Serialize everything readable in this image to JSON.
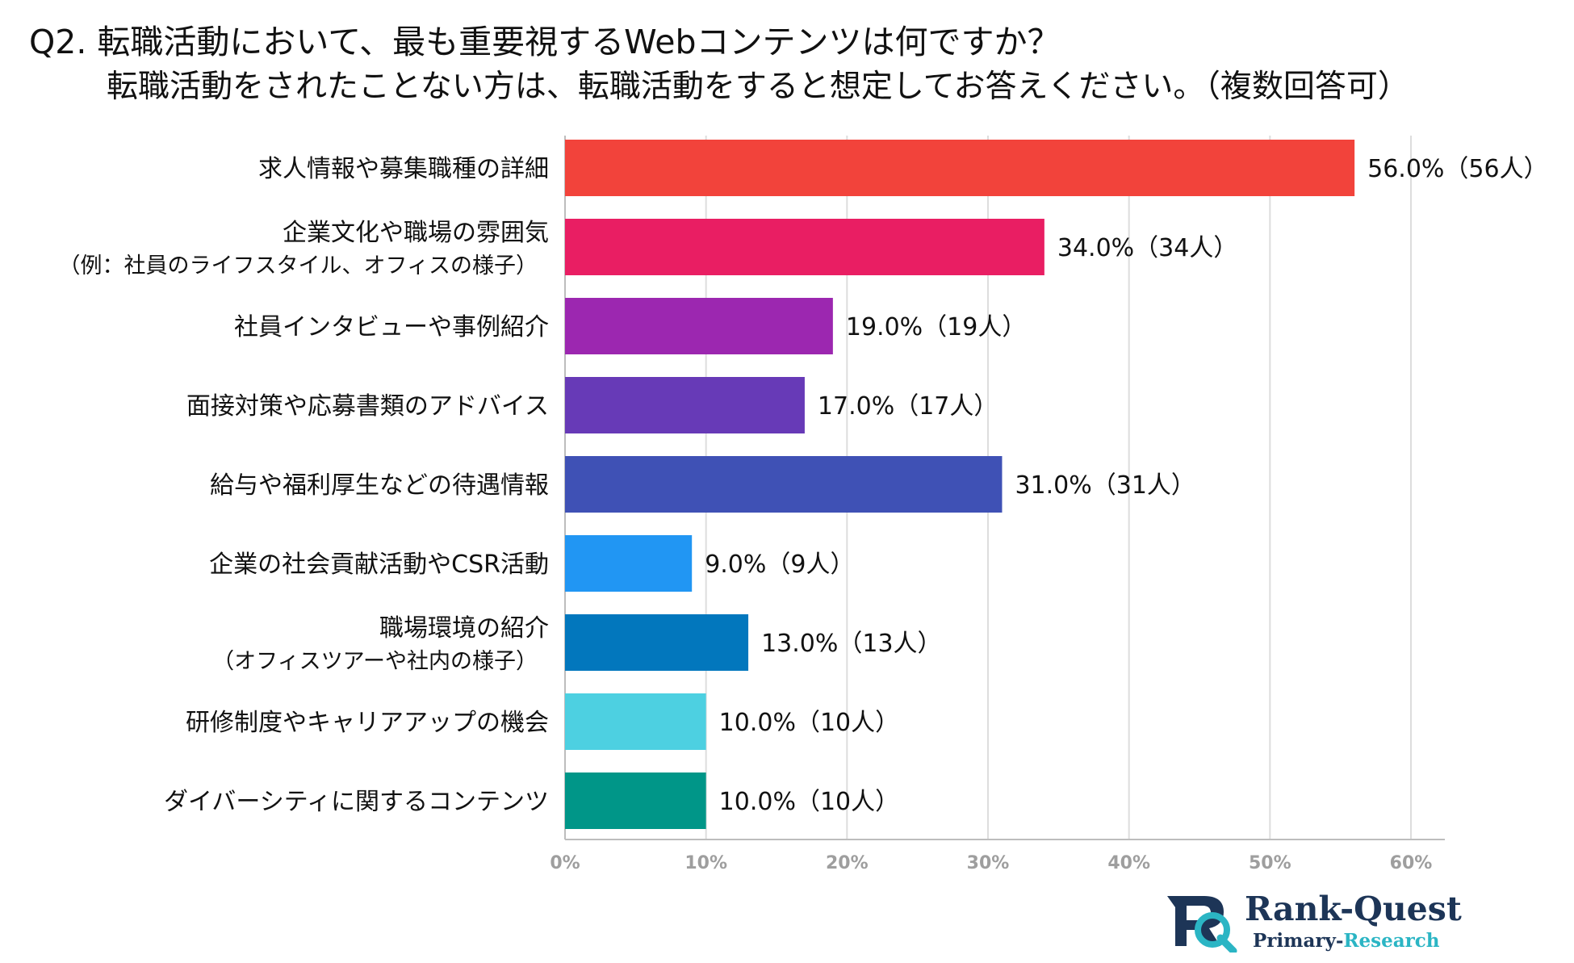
{
  "title": {
    "line1": "Q2. 転職活動において、最も重要視するWebコンテンツは何ですか？",
    "line2": "転職活動をされたことない方は、転職活動をすると想定してお答えください。（複数回答可）"
  },
  "chart_data": {
    "type": "bar",
    "orientation": "horizontal",
    "categories": [
      [
        "求人情報や募集職種の詳細"
      ],
      [
        "企業文化や職場の雰囲気",
        "（例：社員のライフスタイル、オフィスの様子）"
      ],
      [
        "社員インタビューや事例紹介"
      ],
      [
        "面接対策や応募書類のアドバイス"
      ],
      [
        "給与や福利厚生などの待遇情報"
      ],
      [
        "企業の社会貢献活動やCSR活動"
      ],
      [
        "職場環境の紹介",
        "（オフィスツアーや社内の様子）"
      ],
      [
        "研修制度やキャリアアップの機会"
      ],
      [
        "ダイバーシティに関するコンテンツ"
      ]
    ],
    "values": [
      56.0,
      34.0,
      19.0,
      17.0,
      31.0,
      9.0,
      13.0,
      10.0,
      10.0
    ],
    "data_labels": [
      "56.0%（56人）",
      "34.0%（34人）",
      "19.0%（19人）",
      "17.0%（17人）",
      "31.0%（31人）",
      "9.0%（9人）",
      "13.0%（13人）",
      "10.0%（10人）",
      "10.0%（10人）"
    ],
    "colors": [
      "#f2433b",
      "#e91e63",
      "#9c27b0",
      "#673ab7",
      "#3f51b5",
      "#2196f3",
      "#0277bd",
      "#4dd0e1",
      "#009688"
    ],
    "xlim": [
      0,
      60
    ],
    "xticks": [
      "0%",
      "10%",
      "20%",
      "30%",
      "40%",
      "50%",
      "60%"
    ],
    "grid": true,
    "axis_color": "#9e9e9e",
    "grid_color": "#dddddd"
  },
  "logo": {
    "name": "Rank-Quest",
    "sub_a": "Primary-",
    "sub_b": "Research",
    "color": "#1d3557",
    "accent": "#2bb5c4"
  }
}
